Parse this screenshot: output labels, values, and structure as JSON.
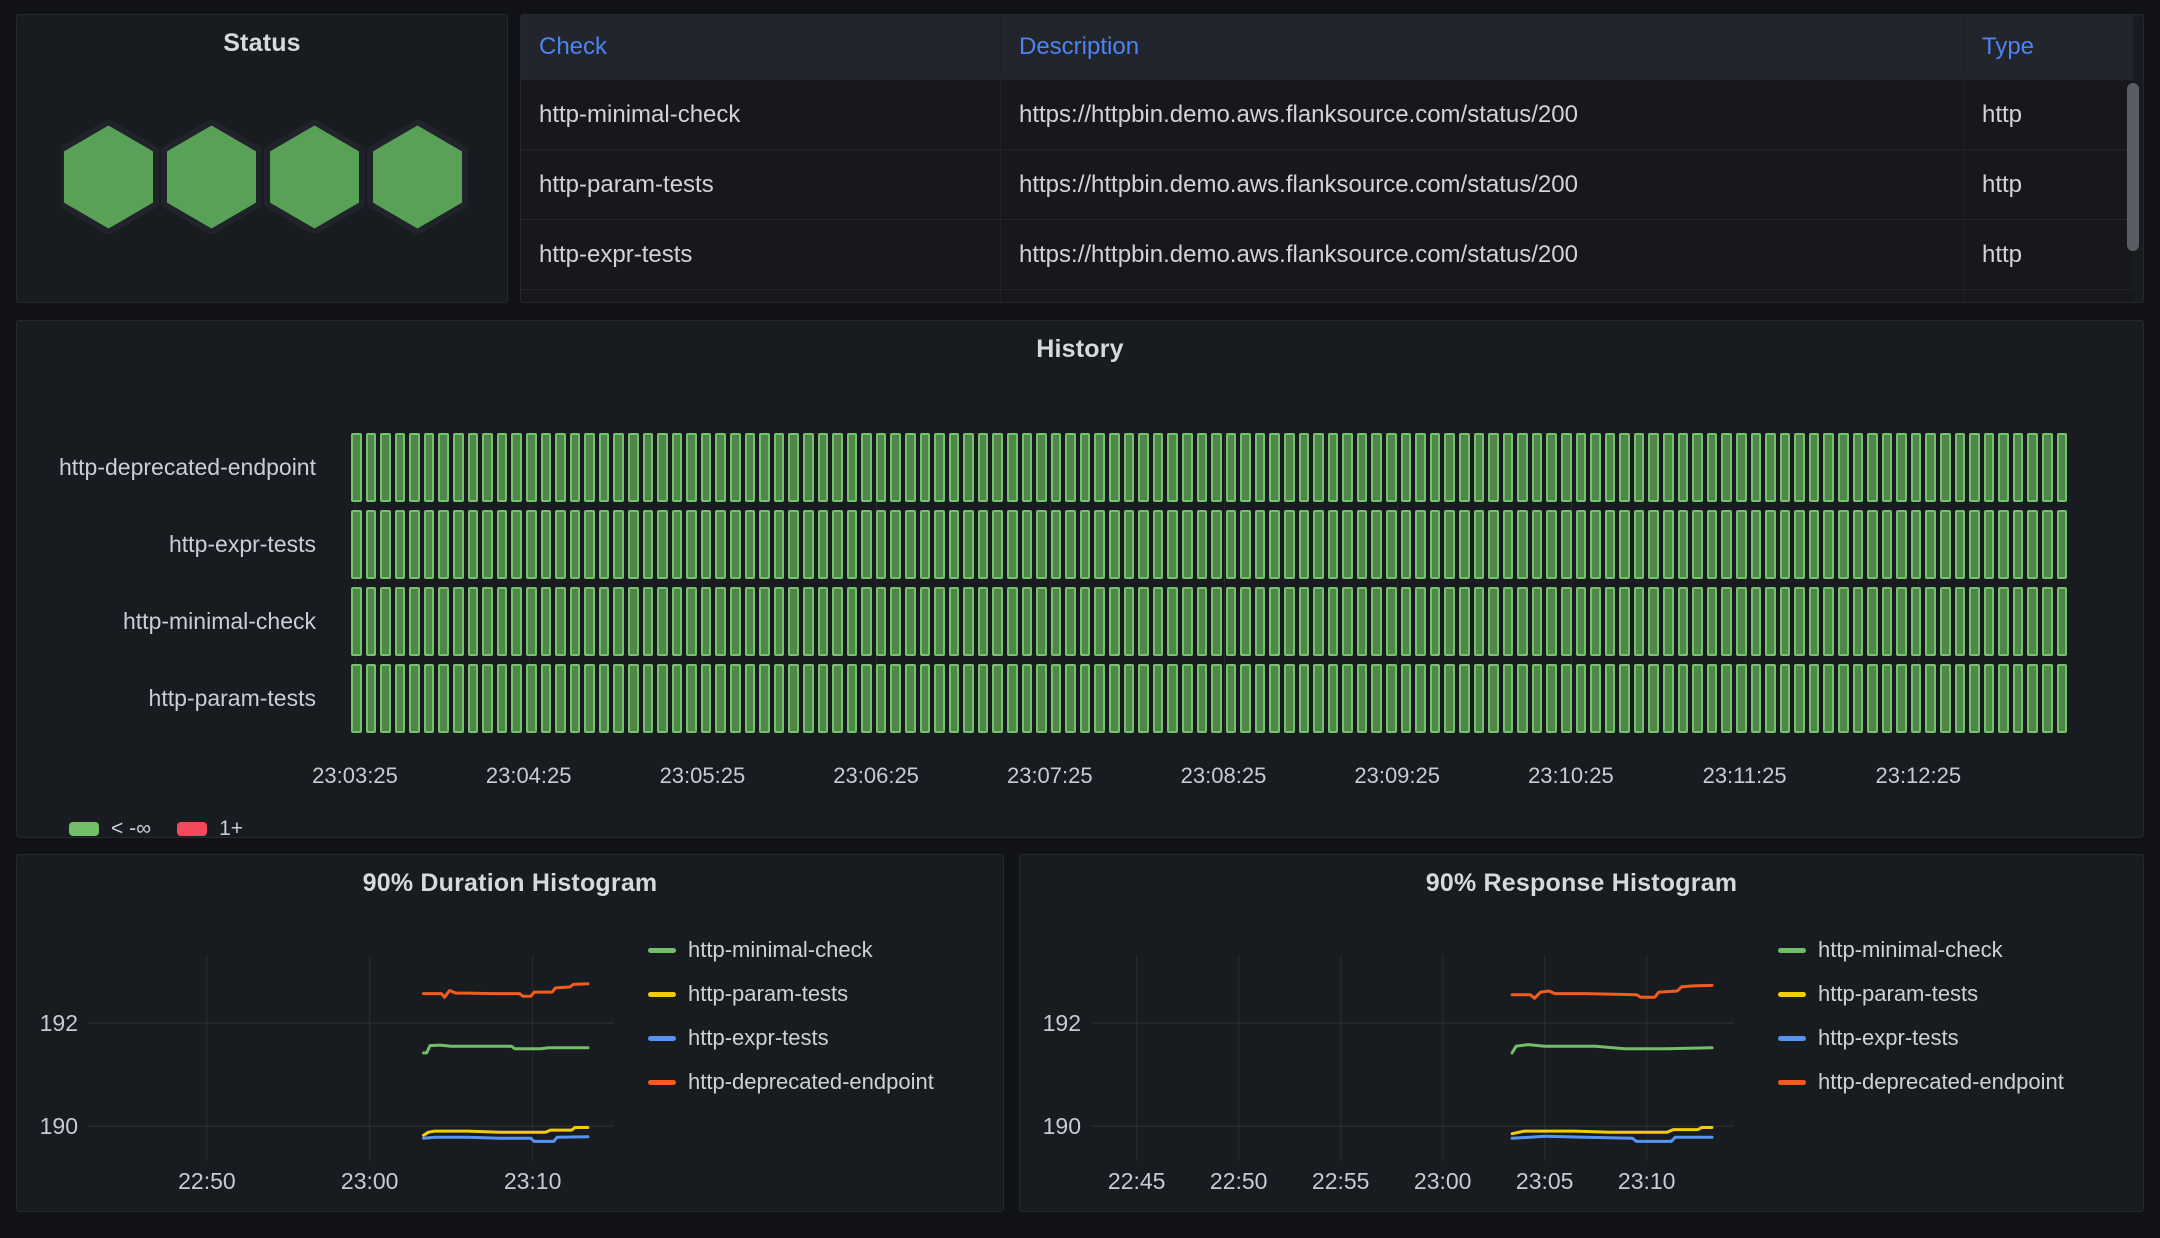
{
  "colors": {
    "page_bg": "#111217",
    "panel_bg": "#181b1f",
    "link_blue": "#4d83f2",
    "text_primary": "#d2d3d8",
    "axis_text": "#c8cbd3",
    "green": "#73BF69",
    "yellow": "#F2CC0C",
    "blue": "#5794F2",
    "orange": "#F25C1E",
    "red": "#F2495C",
    "hex_green": "#59A156",
    "history_cell_fill": "#4e8748",
    "history_cell_border": "#76c16c"
  },
  "panels": {
    "status": {
      "title": "Status",
      "hexagons": [
        "ok",
        "ok",
        "ok",
        "ok"
      ],
      "status_colors": {
        "ok": "#59A156"
      }
    },
    "checks_table": {
      "columns": [
        "Check",
        "Description",
        "Type"
      ],
      "rows": [
        {
          "check": "http-minimal-check",
          "description": "https://httpbin.demo.aws.flanksource.com/status/200",
          "type": "http"
        },
        {
          "check": "http-param-tests",
          "description": "https://httpbin.demo.aws.flanksource.com/status/200",
          "type": "http"
        },
        {
          "check": "http-expr-tests",
          "description": "https://httpbin.demo.aws.flanksource.com/status/200",
          "type": "http"
        }
      ],
      "partial_fourth_row_visible": true
    }
  },
  "chart_data": [
    {
      "id": "history",
      "type": "status-history",
      "title": "History",
      "rows": [
        "http-deprecated-endpoint",
        "http-expr-tests",
        "http-minimal-check",
        "http-param-tests"
      ],
      "cells_per_row": 118,
      "cell_value": "ok",
      "cell_colors": {
        "ok": "#73BF69"
      },
      "x_tick_labels": [
        "23:03:25",
        "23:04:25",
        "23:05:25",
        "23:06:25",
        "23:07:25",
        "23:08:25",
        "23:09:25",
        "23:10:25",
        "23:11:25",
        "23:12:25"
      ],
      "legend": [
        {
          "label": "< -∞",
          "color": "#73BF69"
        },
        {
          "label": "1+",
          "color": "#F2495C"
        }
      ],
      "legend_position": "bottom-left",
      "grid": true
    },
    {
      "id": "duration",
      "type": "line",
      "title": "90% Duration Histogram",
      "x_unit": "minutes after 22:40",
      "x_range": [
        2.7,
        35.0
      ],
      "y_range": [
        189.32,
        193.32
      ],
      "x_ticks": [
        {
          "t": 10,
          "label": "22:50"
        },
        {
          "t": 20,
          "label": "23:00"
        },
        {
          "t": 30,
          "label": "23:10"
        }
      ],
      "y_ticks": [
        {
          "v": 192,
          "label": "192"
        },
        {
          "v": 190,
          "label": "190"
        }
      ],
      "grid": true,
      "legend_position": "right",
      "series": [
        {
          "name": "http-minimal-check",
          "color": "#73BF69",
          "points": [
            [
              23.3,
              191.42
            ],
            [
              23.5,
              191.42
            ],
            [
              23.7,
              191.56
            ],
            [
              24.3,
              191.57
            ],
            [
              25.0,
              191.55
            ],
            [
              27.0,
              191.55
            ],
            [
              28.7,
              191.55
            ],
            [
              28.9,
              191.5
            ],
            [
              30.5,
              191.5
            ],
            [
              31.0,
              191.52
            ],
            [
              33.4,
              191.52
            ]
          ]
        },
        {
          "name": "http-param-tests",
          "color": "#F2CC0C",
          "points": [
            [
              23.3,
              189.82
            ],
            [
              23.6,
              189.88
            ],
            [
              24.0,
              189.9
            ],
            [
              26.0,
              189.9
            ],
            [
              28.0,
              189.88
            ],
            [
              30.8,
              189.88
            ],
            [
              31.1,
              189.92
            ],
            [
              32.4,
              189.92
            ],
            [
              32.6,
              189.97
            ],
            [
              33.4,
              189.97
            ]
          ]
        },
        {
          "name": "http-expr-tests",
          "color": "#5794F2",
          "points": [
            [
              23.3,
              189.76
            ],
            [
              24.0,
              189.78
            ],
            [
              26.0,
              189.78
            ],
            [
              28.0,
              189.76
            ],
            [
              29.9,
              189.76
            ],
            [
              30.1,
              189.7
            ],
            [
              31.3,
              189.7
            ],
            [
              31.5,
              189.78
            ],
            [
              33.4,
              189.79
            ]
          ]
        },
        {
          "name": "http-deprecated-endpoint",
          "color": "#F25C1E",
          "points": [
            [
              23.3,
              192.57
            ],
            [
              24.4,
              192.57
            ],
            [
              24.6,
              192.5
            ],
            [
              24.9,
              192.63
            ],
            [
              25.3,
              192.58
            ],
            [
              26.0,
              192.58
            ],
            [
              27.5,
              192.57
            ],
            [
              29.2,
              192.57
            ],
            [
              29.4,
              192.52
            ],
            [
              29.9,
              192.52
            ],
            [
              30.1,
              192.6
            ],
            [
              31.2,
              192.6
            ],
            [
              31.4,
              192.68
            ],
            [
              32.3,
              192.7
            ],
            [
              32.5,
              192.75
            ],
            [
              33.4,
              192.76
            ]
          ]
        }
      ],
      "legend_order": [
        "http-minimal-check",
        "http-param-tests",
        "http-expr-tests",
        "http-deprecated-endpoint"
      ]
    },
    {
      "id": "response",
      "type": "line",
      "title": "90% Response Histogram",
      "x_unit": "minutes after 22:40",
      "x_range": [
        2.76,
        34.28
      ],
      "y_range": [
        189.32,
        193.32
      ],
      "x_ticks": [
        {
          "t": 5,
          "label": "22:45"
        },
        {
          "t": 10,
          "label": "22:50"
        },
        {
          "t": 15,
          "label": "22:55"
        },
        {
          "t": 20,
          "label": "23:00"
        },
        {
          "t": 25,
          "label": "23:05"
        },
        {
          "t": 30,
          "label": "23:10"
        }
      ],
      "y_ticks": [
        {
          "v": 192,
          "label": "192"
        },
        {
          "v": 190,
          "label": "190"
        }
      ],
      "grid": true,
      "legend_position": "right",
      "series": [
        {
          "name": "http-minimal-check",
          "color": "#73BF69",
          "points": [
            [
              23.4,
              191.42
            ],
            [
              23.6,
              191.55
            ],
            [
              24.2,
              191.58
            ],
            [
              25.0,
              191.55
            ],
            [
              27.5,
              191.55
            ],
            [
              28.9,
              191.5
            ],
            [
              31.0,
              191.5
            ],
            [
              33.2,
              191.52
            ]
          ]
        },
        {
          "name": "http-param-tests",
          "color": "#F2CC0C",
          "points": [
            [
              23.4,
              189.85
            ],
            [
              24.0,
              189.9
            ],
            [
              26.5,
              189.9
            ],
            [
              28.2,
              189.88
            ],
            [
              31.0,
              189.88
            ],
            [
              31.3,
              189.93
            ],
            [
              32.5,
              189.93
            ],
            [
              32.7,
              189.97
            ],
            [
              33.2,
              189.97
            ]
          ]
        },
        {
          "name": "http-expr-tests",
          "color": "#5794F2",
          "points": [
            [
              23.4,
              189.76
            ],
            [
              25.0,
              189.8
            ],
            [
              27.0,
              189.78
            ],
            [
              29.3,
              189.76
            ],
            [
              29.5,
              189.7
            ],
            [
              31.2,
              189.7
            ],
            [
              31.4,
              189.78
            ],
            [
              33.2,
              189.78
            ]
          ]
        },
        {
          "name": "http-deprecated-endpoint",
          "color": "#F25C1E",
          "points": [
            [
              23.4,
              192.55
            ],
            [
              24.3,
              192.55
            ],
            [
              24.5,
              192.48
            ],
            [
              24.8,
              192.6
            ],
            [
              25.2,
              192.62
            ],
            [
              25.5,
              192.57
            ],
            [
              27.0,
              192.57
            ],
            [
              29.5,
              192.55
            ],
            [
              29.7,
              192.5
            ],
            [
              30.4,
              192.5
            ],
            [
              30.6,
              192.6
            ],
            [
              31.5,
              192.62
            ],
            [
              31.7,
              192.7
            ],
            [
              32.3,
              192.72
            ],
            [
              33.2,
              192.73
            ]
          ]
        }
      ],
      "legend_order": [
        "http-minimal-check",
        "http-param-tests",
        "http-expr-tests",
        "http-deprecated-endpoint"
      ]
    }
  ]
}
